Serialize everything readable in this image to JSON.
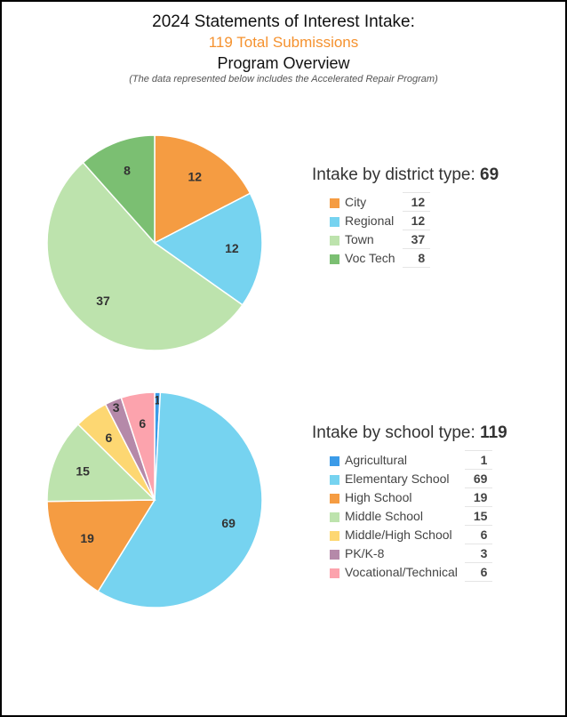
{
  "header": {
    "title": "2024 Statements of Interest Intake:",
    "total": "119 Total Submissions",
    "subtitle": "Program Overview",
    "note": "(The data represented below includes the Accelerated Repair Program)"
  },
  "chart_data": [
    {
      "type": "pie",
      "title": "Intake by district type:",
      "total": "69",
      "categories": [
        "City",
        "Regional",
        "Town",
        "Voc Tech"
      ],
      "values": [
        12,
        12,
        37,
        8
      ],
      "colors": [
        "#f59c42",
        "#76d3f0",
        "#bde3ad",
        "#7bbf72"
      ],
      "legend": "right"
    },
    {
      "type": "pie",
      "title": "Intake by school type:",
      "total": "119",
      "categories": [
        "Agricultural",
        "Elementary School",
        "High School",
        "Middle School",
        "Middle/High School",
        "PK/K-8",
        "Vocational/Technical"
      ],
      "values": [
        1,
        69,
        19,
        15,
        6,
        3,
        6
      ],
      "colors": [
        "#3b9be8",
        "#76d3f0",
        "#f59c42",
        "#bde3ad",
        "#fdd772",
        "#b589a9",
        "#fca3ad"
      ],
      "legend": "right"
    }
  ]
}
